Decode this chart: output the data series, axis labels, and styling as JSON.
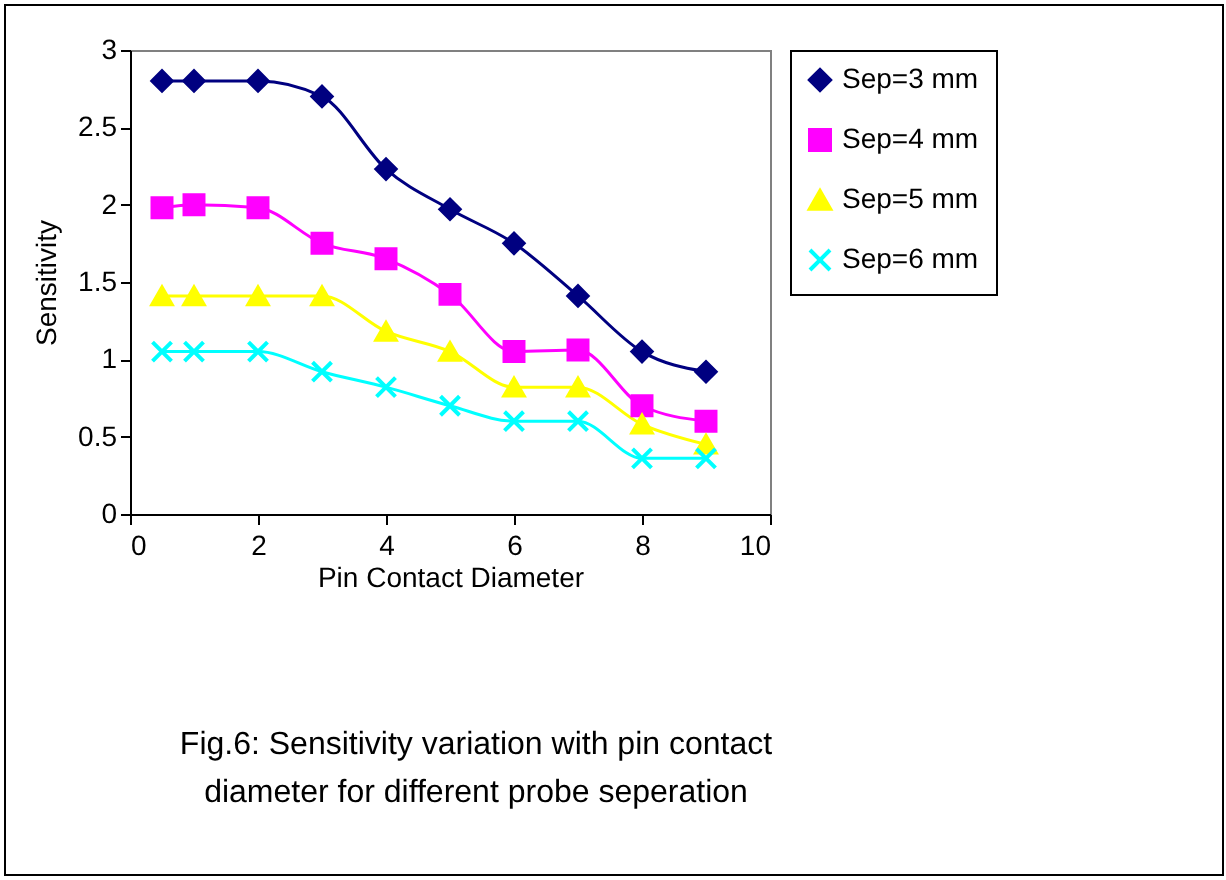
{
  "chart_data": {
    "type": "line",
    "xlabel": "Pin Contact Diameter",
    "ylabel": "Sensitivity",
    "x": [
      0.5,
      1,
      2,
      3,
      4,
      5,
      6,
      7,
      8,
      9
    ],
    "series": [
      {
        "name": "Sep=3 mm",
        "color": "#000080",
        "marker": "diamond",
        "values": [
          2.8,
          2.8,
          2.8,
          2.7,
          2.23,
          1.97,
          1.75,
          1.41,
          1.05,
          0.92
        ]
      },
      {
        "name": "Sep=4 mm",
        "color": "#ff00ff",
        "marker": "square",
        "values": [
          1.98,
          2.0,
          1.98,
          1.75,
          1.65,
          1.42,
          1.05,
          1.06,
          0.7,
          0.6
        ]
      },
      {
        "name": "Sep=5 mm",
        "color": "#ffff00",
        "marker": "triangle",
        "values": [
          1.41,
          1.41,
          1.41,
          1.41,
          1.18,
          1.05,
          0.82,
          0.82,
          0.58,
          0.45
        ]
      },
      {
        "name": "Sep=6 mm",
        "color": "#00ffff",
        "marker": "cross",
        "values": [
          1.05,
          1.05,
          1.05,
          0.92,
          0.82,
          0.7,
          0.6,
          0.6,
          0.36,
          0.36
        ]
      }
    ],
    "xlim": [
      0,
      10
    ],
    "xticks": [
      0,
      2,
      4,
      6,
      8,
      10
    ],
    "ylim": [
      0,
      3
    ],
    "yticks": [
      0,
      0.5,
      1,
      1.5,
      2,
      2.5,
      3
    ],
    "grid": false,
    "legend": "right",
    "annotations": [
      "Fig.6:  Sensitivity variation with pin contact diameter for different probe seperation"
    ]
  }
}
